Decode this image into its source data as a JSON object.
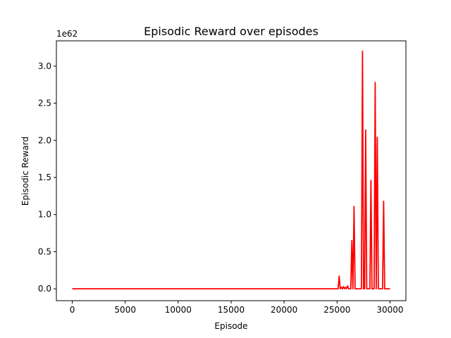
{
  "chart_data": {
    "type": "line",
    "title": "Episodic Reward over episodes",
    "xlabel": "Episode",
    "ylabel": "Episodic Reward",
    "y_scale_label": "1e62",
    "xlim": [
      -1500,
      31500
    ],
    "ylim": [
      -0.16,
      3.34
    ],
    "x_ticks": [
      0,
      5000,
      10000,
      15000,
      20000,
      25000,
      30000
    ],
    "x_tick_labels": [
      "0",
      "5000",
      "10000",
      "15000",
      "20000",
      "25000",
      "30000"
    ],
    "y_ticks": [
      0.0,
      0.5,
      1.0,
      1.5,
      2.0,
      2.5,
      3.0
    ],
    "y_tick_labels": [
      "0.0",
      "0.5",
      "1.0",
      "1.5",
      "2.0",
      "2.5",
      "3.0"
    ],
    "grid": false,
    "series": [
      {
        "color": "#ff0000",
        "x": [
          0,
          25100,
          25200,
          25300,
          25400,
          25500,
          25600,
          25700,
          25800,
          25900,
          26000,
          26100,
          26200,
          26300,
          26400,
          26500,
          26600,
          26700,
          26800,
          27000,
          27300,
          27400,
          27500,
          27600,
          27700,
          27800,
          28100,
          28200,
          28300,
          28500,
          28600,
          28700,
          28800,
          28900,
          29300,
          29400,
          29500,
          30000
        ],
        "y": [
          0,
          0,
          0.17,
          0,
          0.02,
          0,
          0.03,
          0,
          0.02,
          0,
          0.04,
          0,
          0,
          0,
          0.65,
          0,
          1.11,
          0,
          0,
          0,
          0,
          3.2,
          0,
          0,
          2.14,
          0,
          0,
          1.46,
          0,
          0,
          2.78,
          0,
          2.04,
          0,
          0,
          1.18,
          0,
          0
        ]
      }
    ]
  }
}
